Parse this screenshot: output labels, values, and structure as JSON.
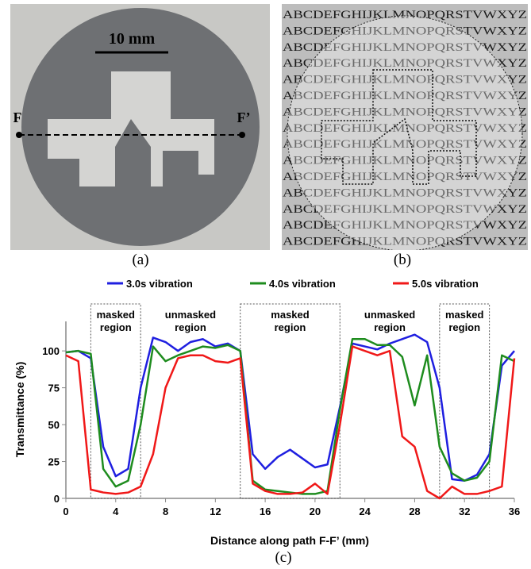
{
  "figure": {
    "panel_labels": [
      "(a)",
      "(b)",
      "(c)"
    ],
    "scale_bar": "10 mm",
    "path_start": "F",
    "path_end": "F’",
    "letters": "ABCDEFGHIJKLMNOPQRSTVWXYZ"
  },
  "chart_data": {
    "type": "line",
    "x_label": "Distance along path F-F’ (mm)",
    "y_label": "Transmittance (%)",
    "x": [
      0,
      1,
      2,
      3,
      4,
      5,
      6,
      7,
      8,
      9,
      10,
      11,
      12,
      13,
      14,
      15,
      16,
      17,
      18,
      19,
      20,
      21,
      22,
      23,
      24,
      25,
      26,
      27,
      28,
      29,
      30,
      31,
      32,
      33,
      34,
      35,
      36
    ],
    "series": [
      {
        "name": "3.0s vibration",
        "color": "#1f1fe0",
        "values": [
          99,
          100,
          95,
          35,
          15,
          20,
          75,
          109,
          106,
          100,
          106,
          108,
          103,
          105,
          100,
          30,
          20,
          28,
          33,
          27,
          21,
          23,
          62,
          105,
          103,
          101,
          105,
          108,
          111,
          106,
          75,
          13,
          12,
          16,
          30,
          90,
          100
        ]
      },
      {
        "name": "4.0s vibration",
        "color": "#1e8c1e",
        "values": [
          99,
          100,
          98,
          20,
          8,
          12,
          50,
          103,
          93,
          97,
          100,
          103,
          102,
          104,
          100,
          12,
          6,
          5,
          4,
          3,
          3,
          5,
          60,
          108,
          108,
          104,
          104,
          96,
          63,
          97,
          35,
          17,
          12,
          14,
          25,
          97,
          93
        ]
      },
      {
        "name": "5.0s vibration",
        "color": "#f01818",
        "values": [
          97,
          93,
          6,
          4,
          3,
          4,
          8,
          30,
          75,
          95,
          97,
          97,
          93,
          92,
          95,
          10,
          5,
          3,
          3,
          4,
          10,
          3,
          50,
          103,
          100,
          97,
          100,
          42,
          35,
          5,
          0,
          8,
          3,
          3,
          5,
          8,
          95
        ]
      }
    ],
    "xlim": [
      0,
      36
    ],
    "xticks": [
      0,
      4,
      8,
      12,
      16,
      20,
      24,
      28,
      32,
      36
    ],
    "ylim": [
      0,
      120
    ],
    "yticks": [
      0,
      25,
      50,
      75,
      100
    ],
    "masked_regions": [
      {
        "lines": [
          "masked",
          "region"
        ],
        "x": [
          2,
          6
        ]
      },
      {
        "lines": [
          "masked",
          "region"
        ],
        "x": [
          14,
          22
        ]
      },
      {
        "lines": [
          "masked",
          "region"
        ],
        "x": [
          30,
          34
        ]
      }
    ],
    "unmasked_labels": [
      {
        "lines": [
          "unmasked",
          "region"
        ],
        "x": 10
      },
      {
        "lines": [
          "unmasked",
          "region"
        ],
        "x": 26
      }
    ]
  }
}
